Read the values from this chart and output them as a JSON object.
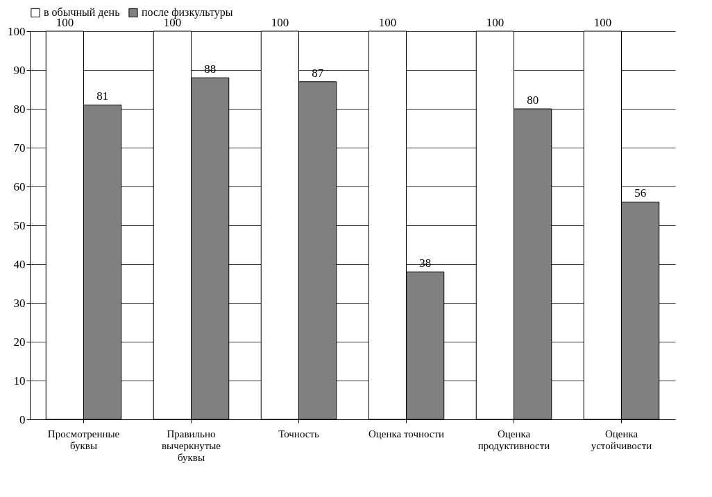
{
  "chart_data": {
    "type": "bar",
    "categories": [
      "Просмотренные\nбуквы",
      "Правильно\nвычеркнутые\nбуквы",
      "Точность",
      "Оценка точности",
      "Оценка\nпродуктивности",
      "Оценка\nустойчивости"
    ],
    "series": [
      {
        "name": "в обычный день",
        "color": "#ffffff",
        "values": [
          100,
          100,
          100,
          100,
          100,
          100
        ]
      },
      {
        "name": "после физкультуры",
        "color": "#808080",
        "values": [
          81,
          88,
          87,
          38,
          80,
          56
        ]
      }
    ],
    "ylim": [
      0,
      100
    ],
    "yticks": [
      0,
      10,
      20,
      30,
      40,
      50,
      60,
      70,
      80,
      90,
      100
    ],
    "grid": "y",
    "legend": "top",
    "data_labels": true
  }
}
